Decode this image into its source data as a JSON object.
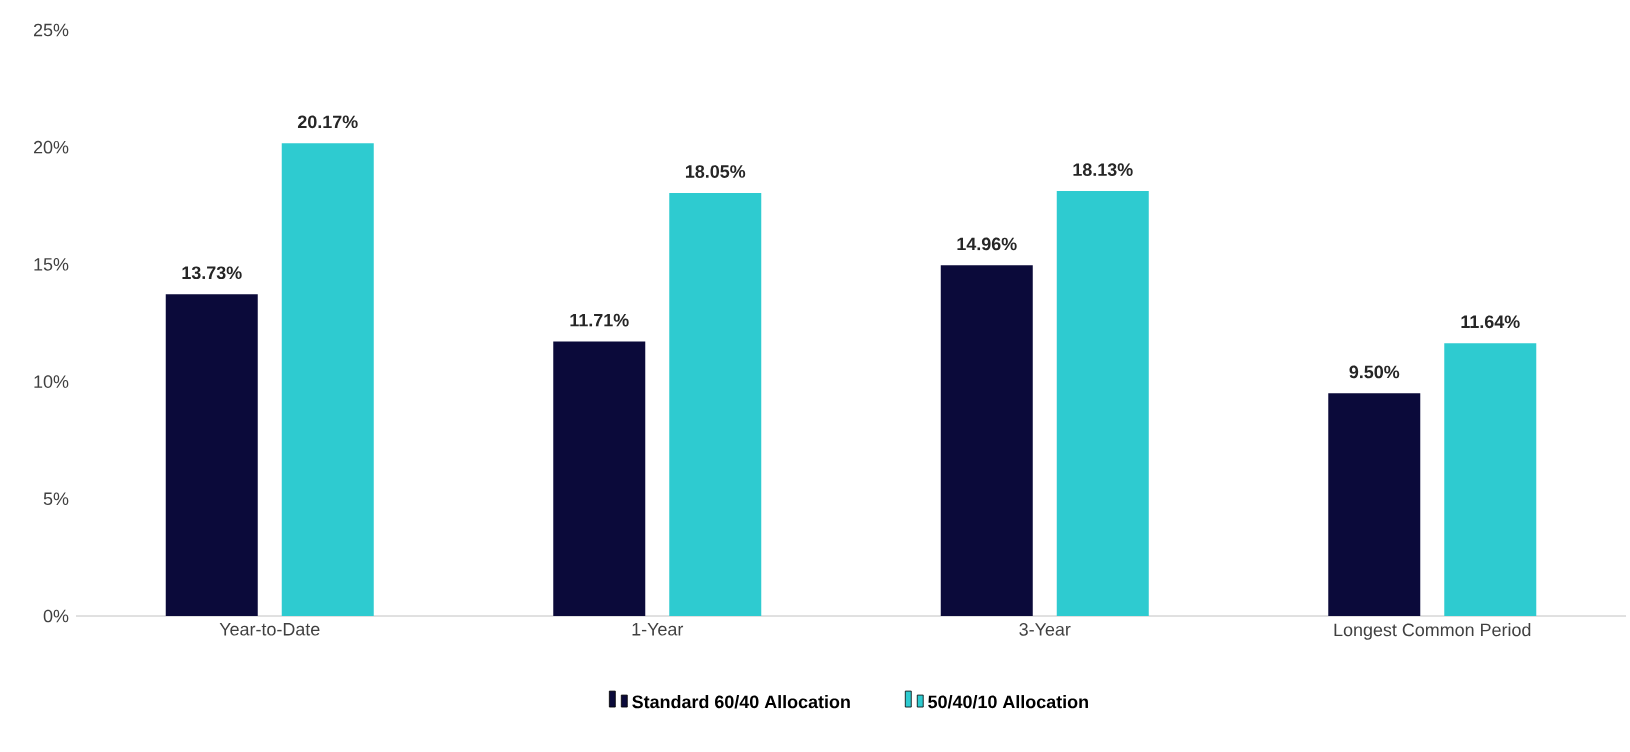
{
  "chart_data": {
    "type": "bar",
    "categories": [
      "Year-to-Date",
      "1-Year",
      "3-Year",
      "Longest Common Period"
    ],
    "series": [
      {
        "name": "Standard 60/40 Allocation",
        "color": "#0b0a3a",
        "values": [
          13.73,
          11.71,
          14.96,
          9.5
        ],
        "value_labels": [
          "13.73%",
          "11.71%",
          "14.96%",
          "9.50%"
        ]
      },
      {
        "name": "50/40/10 Allocation",
        "color": "#2ecbd0",
        "values": [
          20.17,
          18.05,
          18.13,
          11.64
        ],
        "value_labels": [
          "20.17%",
          "18.05%",
          "18.13%",
          "11.64%"
        ]
      }
    ],
    "ylim": [
      0,
      25
    ],
    "yticks": [
      {
        "value": 0,
        "label": "0%"
      },
      {
        "value": 5,
        "label": "5%"
      },
      {
        "value": 10,
        "label": "10%"
      },
      {
        "value": 15,
        "label": "15%"
      },
      {
        "value": 20,
        "label": "20%"
      },
      {
        "value": 25,
        "label": "25%"
      }
    ],
    "legend": "bottom"
  }
}
